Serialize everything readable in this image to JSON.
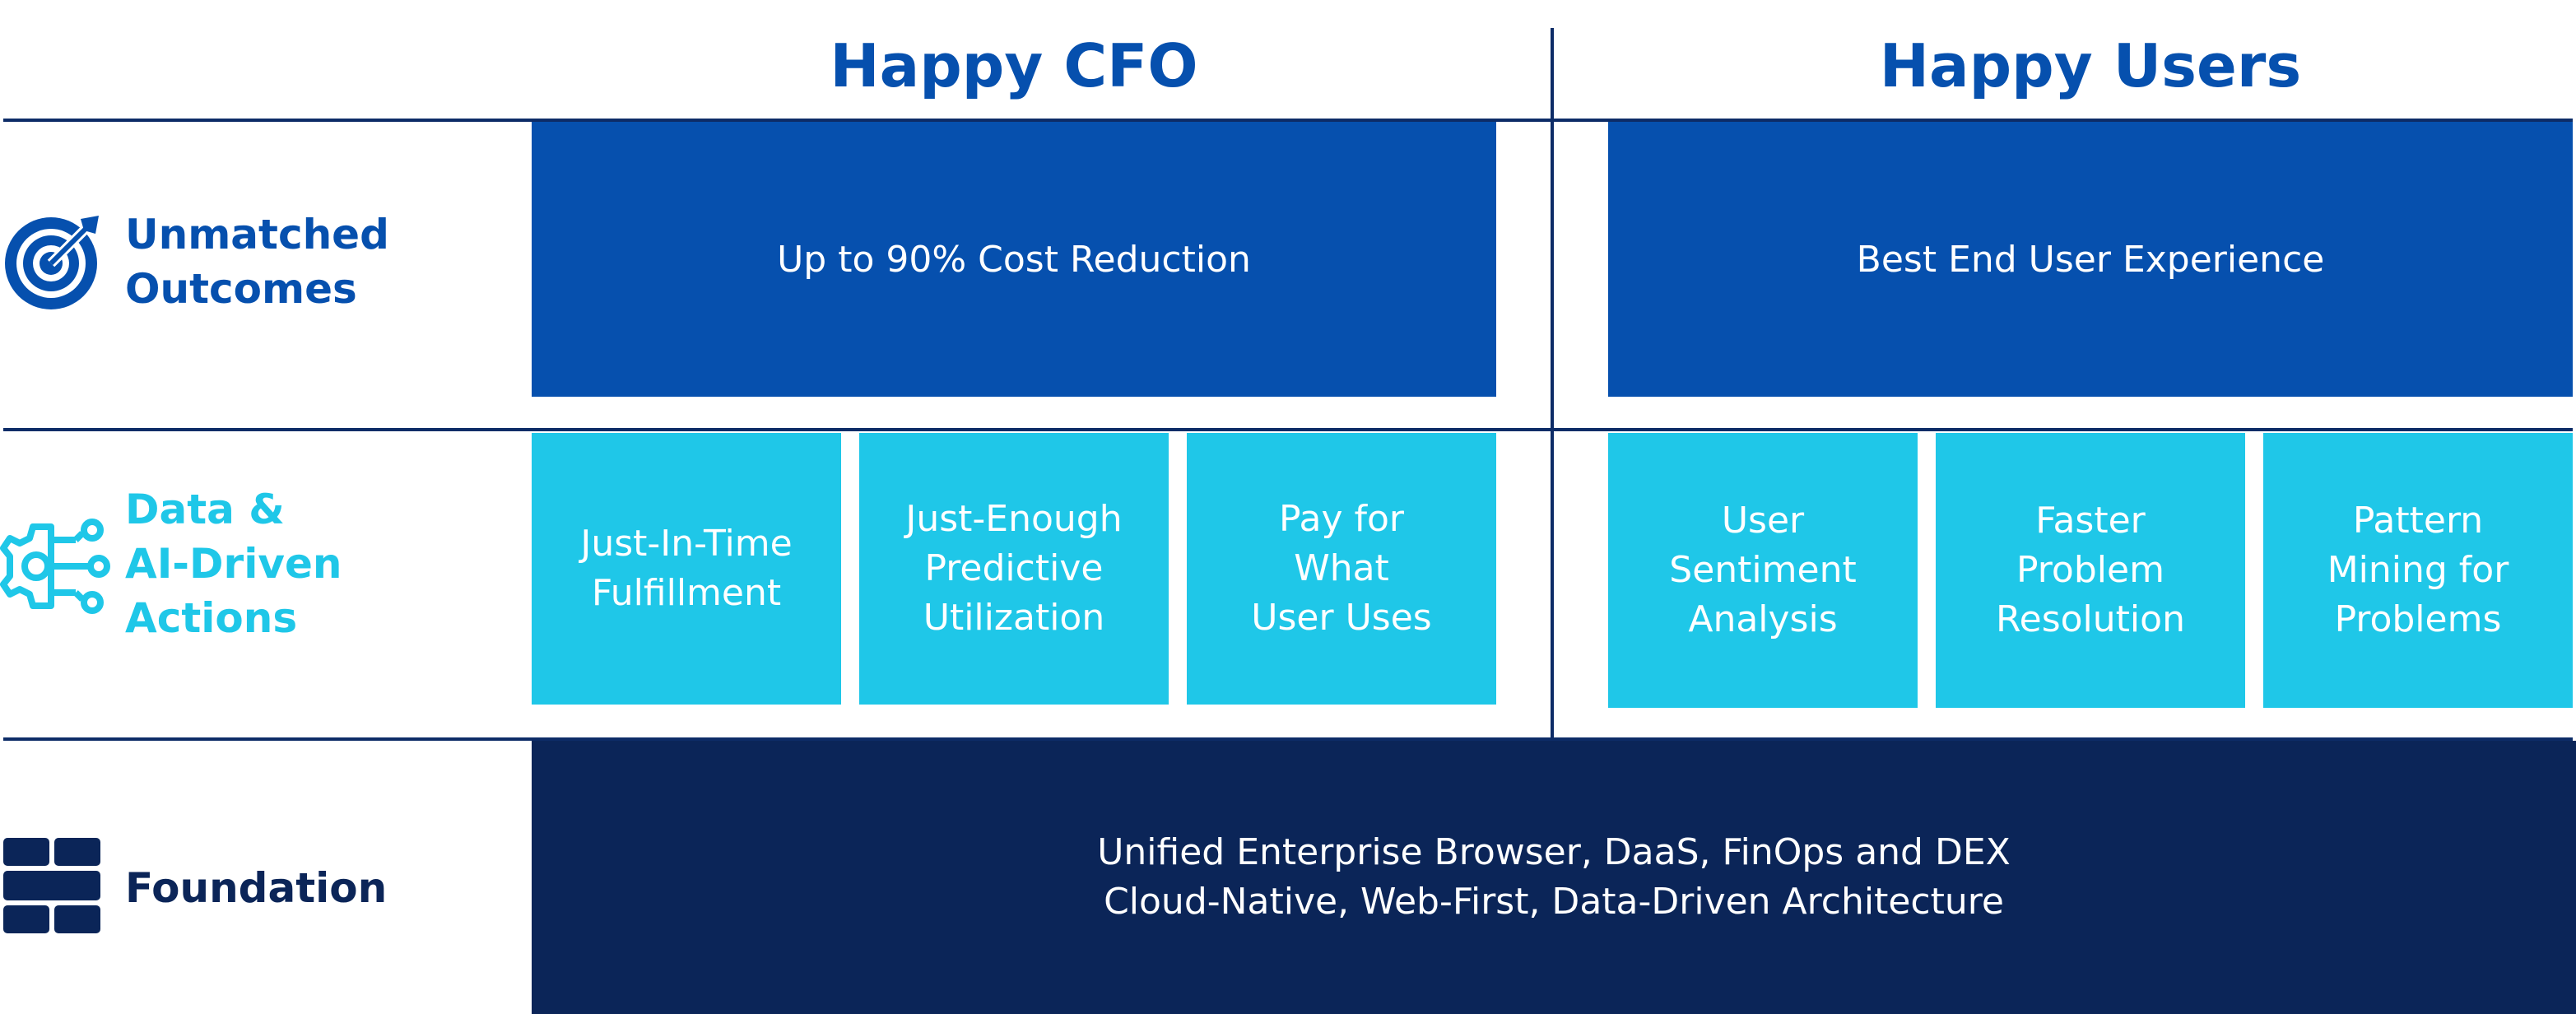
{
  "columns": {
    "left_title": "Happy CFO",
    "right_title": "Happy Users"
  },
  "rows": {
    "outcomes": {
      "label": "Unmatched\nOutcomes",
      "icon": "target-icon",
      "color": "#0650ae",
      "cfo": "Up to 90% Cost Reduction",
      "users": "Best End User Experience"
    },
    "actions": {
      "label": "Data &\nAI-Driven\nActions",
      "icon": "ai-gear-icon",
      "color": "#1fc7e8",
      "cfo": [
        "Just-In-Time\nFulfillment",
        "Just-Enough\nPredictive\nUtilization",
        "Pay for\nWhat\nUser Uses"
      ],
      "users": [
        "User\nSentiment\nAnalysis",
        "Faster\nProblem\nResolution",
        "Pattern\nMining for\nProblems"
      ]
    },
    "foundation": {
      "label": "Foundation",
      "icon": "bricks-icon",
      "color": "#0b2558",
      "text": "Unified Enterprise Browser, DaaS, FinOps and DEX\nCloud-Native, Web-First, Data-Driven Architecture"
    }
  }
}
